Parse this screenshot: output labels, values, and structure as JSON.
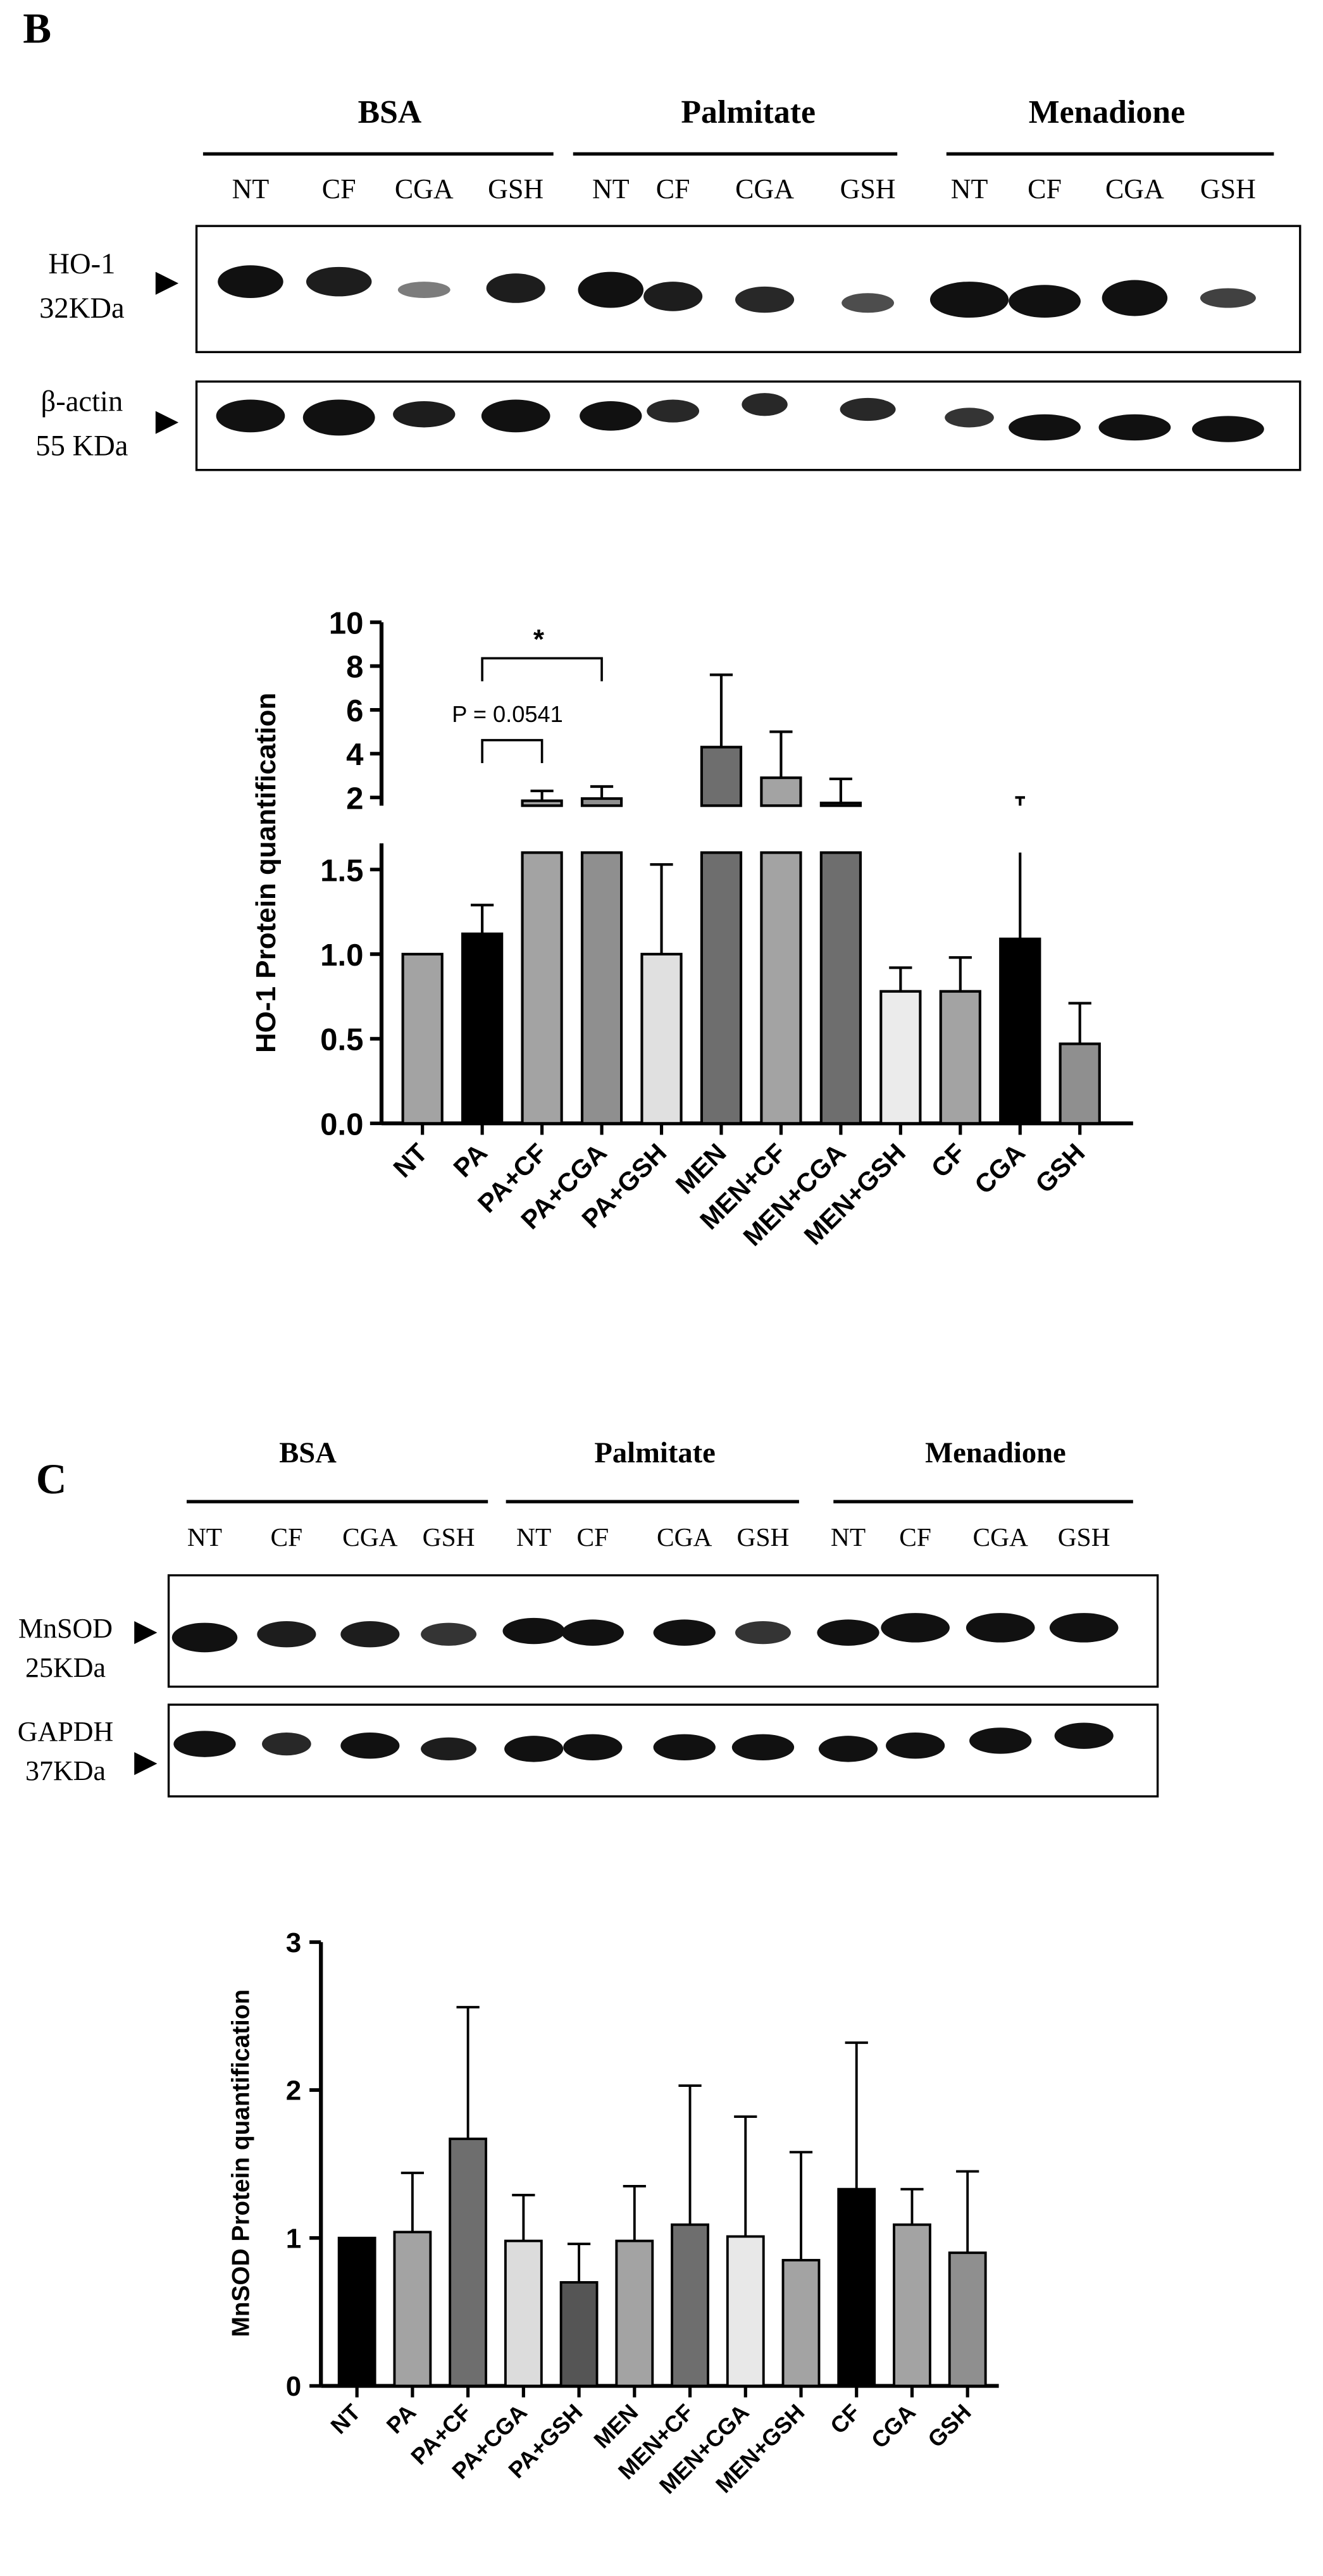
{
  "panel_b": {
    "label": "B",
    "blot": {
      "groups": [
        "BSA",
        "Palmitate",
        "Menadione"
      ],
      "lanes": [
        "NT",
        "CF",
        "CGA",
        "GSH",
        "NT",
        "CF",
        "CGA",
        "GSH",
        "NT",
        "CF",
        "CGA",
        "GSH"
      ],
      "rows": [
        {
          "name": "HO-1",
          "size": "32KDa"
        },
        {
          "name": "β-actin",
          "size": "55 KDa"
        }
      ]
    }
  },
  "panel_c": {
    "label": "C",
    "blot": {
      "groups": [
        "BSA",
        "Palmitate",
        "Menadione"
      ],
      "lanes": [
        "NT",
        "CF",
        "CGA",
        "GSH",
        "NT",
        "CF",
        "CGA",
        "GSH",
        "NT",
        "CF",
        "CGA",
        "GSH"
      ],
      "rows": [
        {
          "name": "MnSOD",
          "size": "25KDa"
        },
        {
          "name": "GAPDH",
          "size": "37KDa"
        }
      ]
    }
  },
  "chart_data": [
    {
      "type": "bar",
      "ylabel": "HO-1 Protein quantification",
      "categories": [
        "NT",
        "PA",
        "PA+CF",
        "PA+CGA",
        "PA+GSH",
        "MEN",
        "MEN+CF",
        "MEN+CGA",
        "MEN+GSH",
        "CF",
        "CGA",
        "GSH"
      ],
      "values": [
        1.0,
        1.12,
        1.85,
        1.95,
        1.0,
        4.3,
        2.9,
        1.75,
        0.78,
        0.78,
        1.09,
        0.47
      ],
      "errors": [
        0,
        0.17,
        0.45,
        0.55,
        0.53,
        3.3,
        2.1,
        1.1,
        0.14,
        0.2,
        0.7,
        0.24
      ],
      "colors": [
        "#a3a3a3",
        "#000000",
        "#a3a3a3",
        "#8f8f8f",
        "#e0e0e0",
        "#6e6e6e",
        "#a3a3a3",
        "#6e6e6e",
        "#ebebeb",
        "#a3a3a3",
        "#000000",
        "#8f8f8f"
      ],
      "y_axis": {
        "type": "broken",
        "lower_range": [
          0,
          1.6
        ],
        "upper_range": [
          2,
          10
        ],
        "lower_ticks": [
          "0.0",
          "0.5",
          "1.0",
          "1.5"
        ],
        "upper_ticks": [
          "2",
          "4",
          "6",
          "8",
          "10"
        ]
      },
      "annotations": [
        "*",
        "P = 0.0541"
      ]
    },
    {
      "type": "bar",
      "ylabel": "MnSOD Protein quantification",
      "categories": [
        "NT",
        "PA",
        "PA+CF",
        "PA+CGA",
        "PA+GSH",
        "MEN",
        "MEN+CF",
        "MEN+CGA",
        "MEN+GSH",
        "CF",
        "CGA",
        "GSH"
      ],
      "values": [
        1.0,
        1.04,
        1.67,
        0.98,
        0.7,
        0.98,
        1.09,
        1.01,
        0.85,
        1.33,
        1.09,
        0.9
      ],
      "errors": [
        0,
        0.4,
        0.89,
        0.31,
        0.26,
        0.37,
        0.94,
        0.81,
        0.73,
        0.99,
        0.24,
        0.55
      ],
      "colors": [
        "#000000",
        "#a3a3a3",
        "#6e6e6e",
        "#dcdcdc",
        "#555555",
        "#a3a3a3",
        "#6e6e6e",
        "#e8e8e8",
        "#a3a3a3",
        "#000000",
        "#a3a3a3",
        "#8f8f8f"
      ],
      "ylim": [
        0,
        3
      ],
      "yticks": [
        "0",
        "1",
        "2",
        "3"
      ]
    }
  ]
}
